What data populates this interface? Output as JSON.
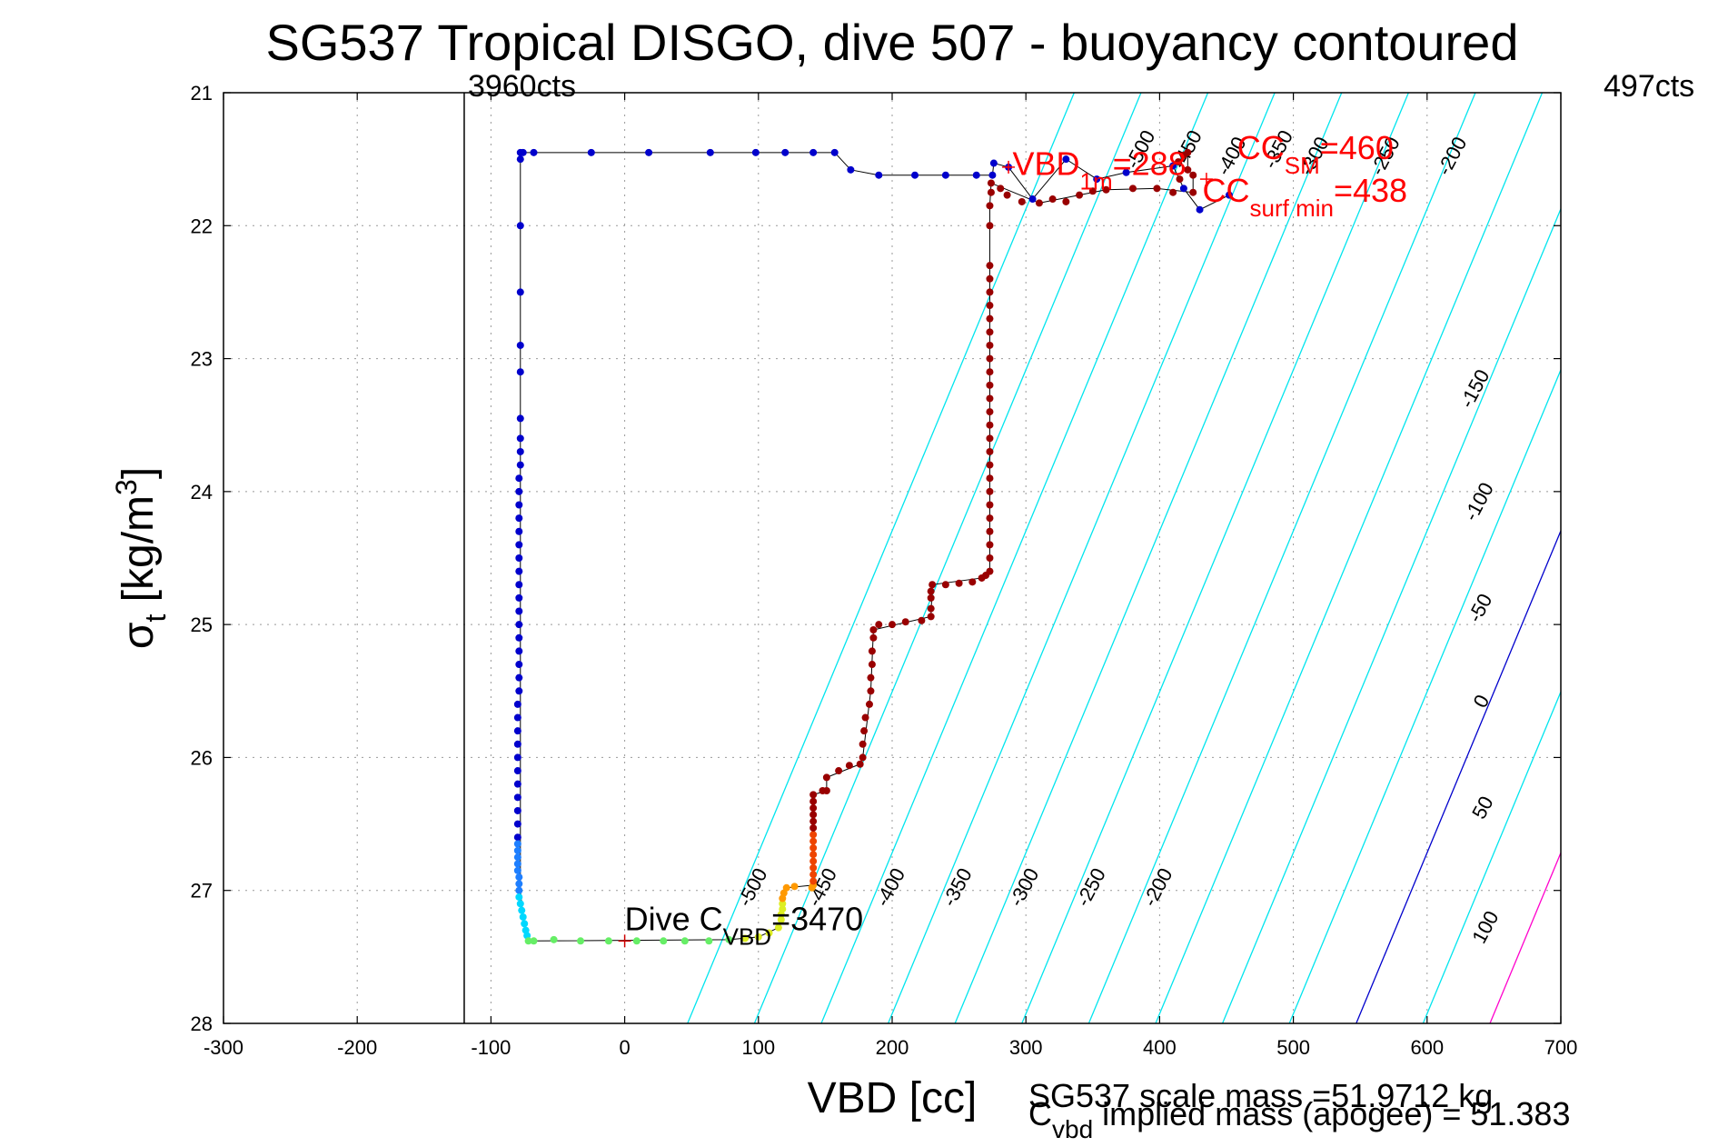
{
  "chart_data": {
    "type": "scatter",
    "title": "SG537 Tropical DISGO, dive 507 - buoyancy contoured",
    "xlabel": "VBD [cc]",
    "ylabel": {
      "base": "σ",
      "sub": "t",
      "rest": " [kg/m",
      "sup": "3",
      "end": "]"
    },
    "xlim": [
      -300,
      700
    ],
    "ylim": [
      21,
      28
    ],
    "y_reversed": true,
    "grid": true,
    "xticks": [
      "-300",
      "-200",
      "-100",
      "0",
      "100",
      "200",
      "300",
      "400",
      "500",
      "600",
      "700"
    ],
    "yticks": [
      "21",
      "22",
      "23",
      "24",
      "25",
      "26",
      "27",
      "28"
    ],
    "reference_line": {
      "x": -120,
      "label": "3960cts"
    },
    "right_label": "497cts",
    "contours": [
      {
        "level": -500,
        "label": "-500",
        "x_at_28": 47,
        "color": "#00e5ee"
      },
      {
        "level": -450,
        "label": "-450",
        "x_at_28": 97,
        "color": "#00e5ee"
      },
      {
        "level": -400,
        "label": "-400",
        "x_at_28": 147,
        "color": "#00e5ee"
      },
      {
        "level": -350,
        "label": "-350",
        "x_at_28": 197,
        "color": "#00e5ee"
      },
      {
        "level": -300,
        "label": "-300",
        "x_at_28": 247,
        "color": "#00e5ee"
      },
      {
        "level": -250,
        "label": "-250",
        "x_at_28": 297,
        "color": "#00e5ee"
      },
      {
        "level": -200,
        "label": "-200",
        "x_at_28": 347,
        "color": "#00e5ee"
      },
      {
        "level": -150,
        "label": "-150",
        "x_at_28": 397,
        "color": "#00e5ee"
      },
      {
        "level": -100,
        "label": "-100",
        "x_at_28": 447,
        "color": "#00e5ee"
      },
      {
        "level": -50,
        "label": "-50",
        "x_at_28": 497,
        "color": "#00e5ee"
      },
      {
        "level": 0,
        "label": "0",
        "x_at_28": 547,
        "color": "#0000cc"
      },
      {
        "level": 50,
        "label": "50",
        "x_at_28": 597,
        "color": "#00e5ee"
      },
      {
        "level": 100,
        "label": "100",
        "x_at_28": 647,
        "color": "#ff00cc"
      }
    ],
    "contour_slope_cc_per_sigma": 41.3,
    "contour_labels_lower": [
      {
        "label": "-500",
        "x": 100,
        "y": 27.0
      },
      {
        "label": "-450",
        "x": 152,
        "y": 27.0
      },
      {
        "label": "-400",
        "x": 203,
        "y": 27.0
      },
      {
        "label": "-350",
        "x": 253,
        "y": 27.0
      },
      {
        "label": "-300",
        "x": 303,
        "y": 27.0
      },
      {
        "label": "-250",
        "x": 353,
        "y": 27.0
      },
      {
        "label": "-200",
        "x": 403,
        "y": 27.0
      }
    ],
    "contour_labels_upper": [
      {
        "label": "-500",
        "x": 390,
        "y": 21.45
      },
      {
        "label": "-450",
        "x": 425,
        "y": 21.45
      },
      {
        "label": "-400",
        "x": 458,
        "y": 21.5
      },
      {
        "label": "-350",
        "x": 493,
        "y": 21.45
      },
      {
        "label": "-300",
        "x": 520,
        "y": 21.5
      },
      {
        "label": "-250",
        "x": 573,
        "y": 21.5
      },
      {
        "label": "-200",
        "x": 623,
        "y": 21.5
      },
      {
        "label": "-150",
        "x": 640,
        "y": 23.25
      },
      {
        "label": "-100",
        "x": 643,
        "y": 24.1
      },
      {
        "label": "-50",
        "x": 644,
        "y": 24.9
      },
      {
        "label": "0",
        "x": 645,
        "y": 25.6
      },
      {
        "label": "50",
        "x": 646,
        "y": 26.4
      },
      {
        "label": "100",
        "x": 648,
        "y": 27.3
      }
    ],
    "series": [
      {
        "color": "#0000cc",
        "points": [
          [
            452,
            21.77
          ],
          [
            430,
            21.88
          ],
          [
            418,
            21.72
          ],
          [
            410,
            21.55
          ],
          [
            375,
            21.6
          ],
          [
            353,
            21.65
          ],
          [
            330,
            21.5
          ],
          [
            305,
            21.8
          ],
          [
            287,
            21.56
          ],
          [
            276,
            21.53
          ],
          [
            275,
            21.62
          ],
          [
            263,
            21.62
          ],
          [
            240,
            21.62
          ],
          [
            217,
            21.62
          ],
          [
            190,
            21.62
          ],
          [
            169,
            21.58
          ],
          [
            157,
            21.45
          ],
          [
            141,
            21.45
          ],
          [
            120,
            21.45
          ],
          [
            98,
            21.45
          ],
          [
            64,
            21.45
          ],
          [
            18,
            21.45
          ],
          [
            -25,
            21.45
          ],
          [
            -68,
            21.45
          ],
          [
            -76,
            21.45
          ],
          [
            -78,
            21.45
          ],
          [
            -78,
            21.5
          ],
          [
            -78,
            22.0
          ],
          [
            -78,
            22.5
          ],
          [
            -78,
            22.9
          ],
          [
            -78,
            23.1
          ],
          [
            -78,
            23.45
          ],
          [
            -78,
            23.6
          ],
          [
            -78,
            23.7
          ],
          [
            -78,
            23.8
          ],
          [
            -79,
            23.9
          ],
          [
            -79,
            24.0
          ],
          [
            -79,
            24.1
          ],
          [
            -79,
            24.2
          ],
          [
            -79,
            24.3
          ],
          [
            -79,
            24.4
          ],
          [
            -79,
            24.5
          ],
          [
            -79,
            24.6
          ],
          [
            -79,
            24.7
          ],
          [
            -79,
            24.8
          ],
          [
            -79,
            24.9
          ],
          [
            -79,
            25.0
          ],
          [
            -79,
            25.1
          ],
          [
            -79,
            25.2
          ],
          [
            -79,
            25.3
          ],
          [
            -79,
            25.4
          ],
          [
            -79,
            25.5
          ],
          [
            -80,
            25.6
          ],
          [
            -80,
            25.7
          ],
          [
            -80,
            25.8
          ],
          [
            -80,
            25.9
          ],
          [
            -80,
            26.0
          ],
          [
            -80,
            26.1
          ],
          [
            -80,
            26.2
          ],
          [
            -80,
            26.3
          ],
          [
            -80,
            26.4
          ],
          [
            -80,
            26.5
          ],
          [
            -80,
            26.6
          ]
        ]
      },
      {
        "color": "#1e7fff",
        "points": [
          [
            -80,
            26.65
          ],
          [
            -80,
            26.7
          ],
          [
            -80,
            26.75
          ],
          [
            -80,
            26.8
          ],
          [
            -80,
            26.85
          ],
          [
            -79,
            26.9
          ],
          [
            -79,
            26.95
          ],
          [
            -79,
            27.0
          ]
        ]
      },
      {
        "color": "#00d8ff",
        "points": [
          [
            -79,
            27.05
          ],
          [
            -78,
            27.1
          ],
          [
            -77,
            27.15
          ],
          [
            -76,
            27.2
          ],
          [
            -75,
            27.25
          ],
          [
            -74,
            27.3
          ],
          [
            -73,
            27.34
          ]
        ]
      },
      {
        "color": "#66ee66",
        "points": [
          [
            -72,
            27.38
          ],
          [
            -68,
            27.38
          ],
          [
            -53,
            27.37
          ],
          [
            -33,
            27.38
          ],
          [
            -12,
            27.38
          ],
          [
            9,
            27.38
          ],
          [
            29,
            27.38
          ],
          [
            45,
            27.38
          ],
          [
            63,
            27.38
          ],
          [
            78,
            27.37
          ]
        ]
      },
      {
        "color": "#ddee22",
        "points": [
          [
            90,
            27.36
          ],
          [
            100,
            27.35
          ],
          [
            108,
            27.32
          ],
          [
            115,
            27.28
          ],
          [
            117,
            27.22
          ],
          [
            117,
            27.18
          ],
          [
            118,
            27.14
          ],
          [
            118,
            27.1
          ]
        ]
      },
      {
        "color": "#ff9900",
        "points": [
          [
            118,
            27.06
          ],
          [
            119,
            27.02
          ],
          [
            121,
            26.98
          ],
          [
            127,
            26.97
          ],
          [
            140,
            26.98
          ],
          [
            141,
            26.96
          ]
        ]
      },
      {
        "color": "#ee4400",
        "points": [
          [
            141,
            26.93
          ],
          [
            141,
            26.88
          ],
          [
            141,
            26.83
          ],
          [
            141,
            26.78
          ],
          [
            141,
            26.73
          ],
          [
            141,
            26.68
          ],
          [
            141,
            26.63
          ],
          [
            141,
            26.58
          ]
        ]
      },
      {
        "color": "#990000",
        "points": [
          [
            141,
            26.53
          ],
          [
            141,
            26.48
          ],
          [
            141,
            26.43
          ],
          [
            141,
            26.38
          ],
          [
            141,
            26.33
          ],
          [
            141,
            26.28
          ],
          [
            148,
            26.25
          ],
          [
            151,
            26.25
          ],
          [
            151,
            26.15
          ],
          [
            160,
            26.1
          ],
          [
            168,
            26.06
          ],
          [
            176,
            26.05
          ],
          [
            178,
            26.0
          ],
          [
            178,
            25.9
          ],
          [
            179,
            25.8
          ],
          [
            180,
            25.7
          ],
          [
            183,
            25.6
          ],
          [
            184,
            25.5
          ],
          [
            184,
            25.4
          ],
          [
            185,
            25.3
          ],
          [
            185,
            25.2
          ],
          [
            186,
            25.1
          ],
          [
            186,
            25.04
          ],
          [
            190,
            25.0
          ],
          [
            200,
            25.0
          ],
          [
            210,
            24.98
          ],
          [
            222,
            24.97
          ],
          [
            229,
            24.94
          ],
          [
            229,
            24.88
          ],
          [
            229,
            24.8
          ],
          [
            229,
            24.75
          ],
          [
            230,
            24.7
          ],
          [
            240,
            24.7
          ],
          [
            250,
            24.69
          ],
          [
            260,
            24.68
          ],
          [
            267,
            24.65
          ],
          [
            270,
            24.63
          ],
          [
            273,
            24.6
          ],
          [
            273,
            24.5
          ],
          [
            273,
            24.4
          ],
          [
            273,
            24.3
          ],
          [
            273,
            24.2
          ],
          [
            273,
            24.1
          ],
          [
            273,
            24.0
          ],
          [
            273,
            23.9
          ],
          [
            273,
            23.8
          ],
          [
            273,
            23.7
          ],
          [
            273,
            23.6
          ],
          [
            273,
            23.5
          ],
          [
            273,
            23.4
          ],
          [
            273,
            23.3
          ],
          [
            273,
            23.2
          ],
          [
            273,
            23.1
          ],
          [
            273,
            23.0
          ],
          [
            273,
            22.9
          ],
          [
            273,
            22.8
          ],
          [
            273,
            22.7
          ],
          [
            273,
            22.6
          ],
          [
            273,
            22.5
          ],
          [
            273,
            22.4
          ],
          [
            273,
            22.3
          ],
          [
            273,
            22.0
          ],
          [
            273,
            21.85
          ],
          [
            274,
            21.75
          ],
          [
            274,
            21.68
          ],
          [
            281,
            21.72
          ],
          [
            286,
            21.77
          ],
          [
            297,
            21.82
          ],
          [
            310,
            21.83
          ],
          [
            320,
            21.8
          ],
          [
            330,
            21.82
          ],
          [
            340,
            21.77
          ],
          [
            350,
            21.74
          ],
          [
            360,
            21.73
          ],
          [
            380,
            21.72
          ],
          [
            398,
            21.72
          ],
          [
            410,
            21.75
          ],
          [
            425,
            21.75
          ],
          [
            425,
            21.62
          ],
          [
            414,
            21.52
          ],
          [
            418,
            21.47
          ],
          [
            421,
            21.45
          ],
          [
            421,
            21.58
          ],
          [
            415,
            21.65
          ]
        ]
      }
    ],
    "path": [
      [
        452,
        21.77
      ],
      [
        430,
        21.88
      ],
      [
        418,
        21.72
      ],
      [
        410,
        21.55
      ],
      [
        375,
        21.6
      ],
      [
        353,
        21.65
      ],
      [
        330,
        21.5
      ],
      [
        305,
        21.8
      ],
      [
        287,
        21.56
      ],
      [
        276,
        21.53
      ],
      [
        275,
        21.62
      ],
      [
        263,
        21.62
      ],
      [
        217,
        21.62
      ],
      [
        190,
        21.62
      ],
      [
        169,
        21.58
      ],
      [
        157,
        21.45
      ],
      [
        -78,
        21.45
      ],
      [
        -78,
        27.0
      ],
      [
        -76,
        27.2
      ],
      [
        -72,
        27.38
      ],
      [
        78,
        27.37
      ],
      [
        100,
        27.35
      ],
      [
        115,
        27.28
      ],
      [
        118,
        27.1
      ],
      [
        121,
        26.98
      ],
      [
        141,
        26.96
      ],
      [
        141,
        26.28
      ],
      [
        151,
        26.25
      ],
      [
        151,
        26.15
      ],
      [
        176,
        26.05
      ],
      [
        178,
        26.0
      ],
      [
        184,
        25.5
      ],
      [
        186,
        25.04
      ],
      [
        229,
        24.94
      ],
      [
        230,
        24.7
      ],
      [
        267,
        24.65
      ],
      [
        273,
        24.6
      ],
      [
        273,
        21.85
      ],
      [
        274,
        21.68
      ],
      [
        310,
        21.83
      ],
      [
        360,
        21.73
      ],
      [
        398,
        21.72
      ],
      [
        425,
        21.75
      ],
      [
        425,
        21.62
      ],
      [
        414,
        21.52
      ],
      [
        421,
        21.45
      ],
      [
        421,
        21.58
      ]
    ],
    "markers": [
      {
        "x": 287,
        "y": 21.56,
        "color": "#ff0000"
      },
      {
        "x": 435,
        "y": 21.65,
        "color": "#ff0000"
      },
      {
        "x": 0,
        "y": 27.38,
        "color": "#cc0000"
      }
    ],
    "annotations": [
      {
        "name": "vbd-1m",
        "color": "#ff0000",
        "x": 290,
        "y": 21.62,
        "base": "VBD",
        "sub": "1m",
        "end": "=288"
      },
      {
        "name": "cc-sm",
        "color": "#ff0000",
        "x": 458,
        "y": 21.5,
        "base": "CC",
        "sub": "SM",
        "end": "=460"
      },
      {
        "name": "cc-surf-min",
        "color": "#ff0000",
        "x": 432,
        "y": 21.82,
        "base": "CC",
        "sub": "surf min",
        "end": "=438"
      },
      {
        "name": "dive-cvbd",
        "color": "#000000",
        "x": 0,
        "y": 27.3,
        "base": "Dive C",
        "sub": "VBD",
        "end": "=3470"
      }
    ],
    "footer": {
      "line1": "SG537 scale mass =51.9712 kg",
      "line2_base": "C",
      "line2_sub": "vbd",
      "line2_end": " implied mass (apogee) = 51.383"
    }
  }
}
